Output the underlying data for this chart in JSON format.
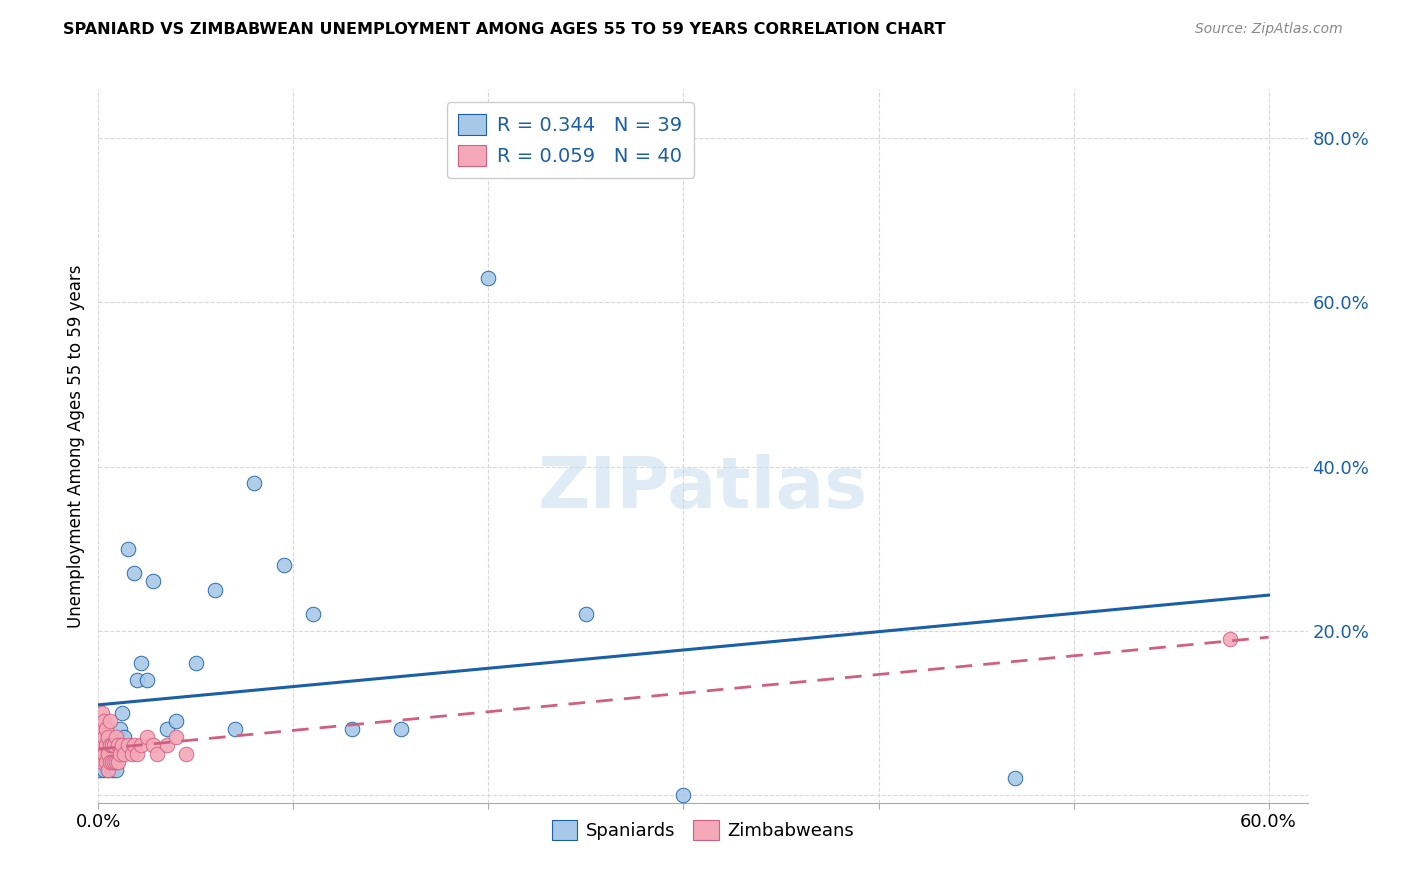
{
  "title": "SPANIARD VS ZIMBABWEAN UNEMPLOYMENT AMONG AGES 55 TO 59 YEARS CORRELATION CHART",
  "source": "Source: ZipAtlas.com",
  "ylabel": "Unemployment Among Ages 55 to 59 years",
  "xlim": [
    0.0,
    0.62
  ],
  "ylim": [
    -0.01,
    0.86
  ],
  "yticks": [
    0.0,
    0.2,
    0.4,
    0.6,
    0.8
  ],
  "ytick_labels": [
    "",
    "20.0%",
    "40.0%",
    "60.0%",
    "80.0%"
  ],
  "spaniards_color": "#a8c8e8",
  "zimbabweans_color": "#f4a8b8",
  "trendline_spaniards_color": "#1a5fa8",
  "trendline_zimbabweans_color": "#d06080",
  "legend_R_spaniards": "R = 0.344",
  "legend_N_spaniards": "N = 39",
  "legend_R_zimbabweans": "R = 0.059",
  "legend_N_zimbabweans": "N = 40",
  "spaniards_x": [
    0.001,
    0.002,
    0.003,
    0.003,
    0.004,
    0.004,
    0.005,
    0.005,
    0.006,
    0.006,
    0.007,
    0.007,
    0.008,
    0.008,
    0.009,
    0.01,
    0.011,
    0.012,
    0.013,
    0.015,
    0.018,
    0.02,
    0.022,
    0.025,
    0.028,
    0.035,
    0.04,
    0.05,
    0.06,
    0.07,
    0.08,
    0.095,
    0.11,
    0.13,
    0.155,
    0.2,
    0.25,
    0.3,
    0.47
  ],
  "spaniards_y": [
    0.03,
    0.04,
    0.05,
    0.03,
    0.04,
    0.06,
    0.03,
    0.05,
    0.04,
    0.06,
    0.03,
    0.05,
    0.04,
    0.06,
    0.03,
    0.05,
    0.08,
    0.1,
    0.07,
    0.3,
    0.27,
    0.14,
    0.16,
    0.14,
    0.26,
    0.08,
    0.09,
    0.16,
    0.25,
    0.08,
    0.38,
    0.28,
    0.22,
    0.08,
    0.08,
    0.63,
    0.22,
    0.0,
    0.02
  ],
  "zimbabweans_x": [
    0.001,
    0.001,
    0.002,
    0.002,
    0.002,
    0.003,
    0.003,
    0.003,
    0.004,
    0.004,
    0.004,
    0.005,
    0.005,
    0.005,
    0.006,
    0.006,
    0.006,
    0.007,
    0.007,
    0.008,
    0.008,
    0.009,
    0.009,
    0.01,
    0.01,
    0.011,
    0.012,
    0.013,
    0.015,
    0.017,
    0.018,
    0.02,
    0.022,
    0.025,
    0.028,
    0.03,
    0.035,
    0.04,
    0.045,
    0.58
  ],
  "zimbabweans_y": [
    0.05,
    0.08,
    0.04,
    0.06,
    0.1,
    0.05,
    0.07,
    0.09,
    0.04,
    0.06,
    0.08,
    0.03,
    0.05,
    0.07,
    0.04,
    0.06,
    0.09,
    0.04,
    0.06,
    0.04,
    0.06,
    0.04,
    0.07,
    0.04,
    0.06,
    0.05,
    0.06,
    0.05,
    0.06,
    0.05,
    0.06,
    0.05,
    0.06,
    0.07,
    0.06,
    0.05,
    0.06,
    0.07,
    0.05,
    0.19
  ],
  "background_color": "#ffffff",
  "grid_color": "#d8d8d8",
  "xtick_positions": [
    0.0,
    0.1,
    0.2,
    0.3,
    0.4,
    0.5,
    0.6
  ],
  "watermark": "ZIPatlas"
}
